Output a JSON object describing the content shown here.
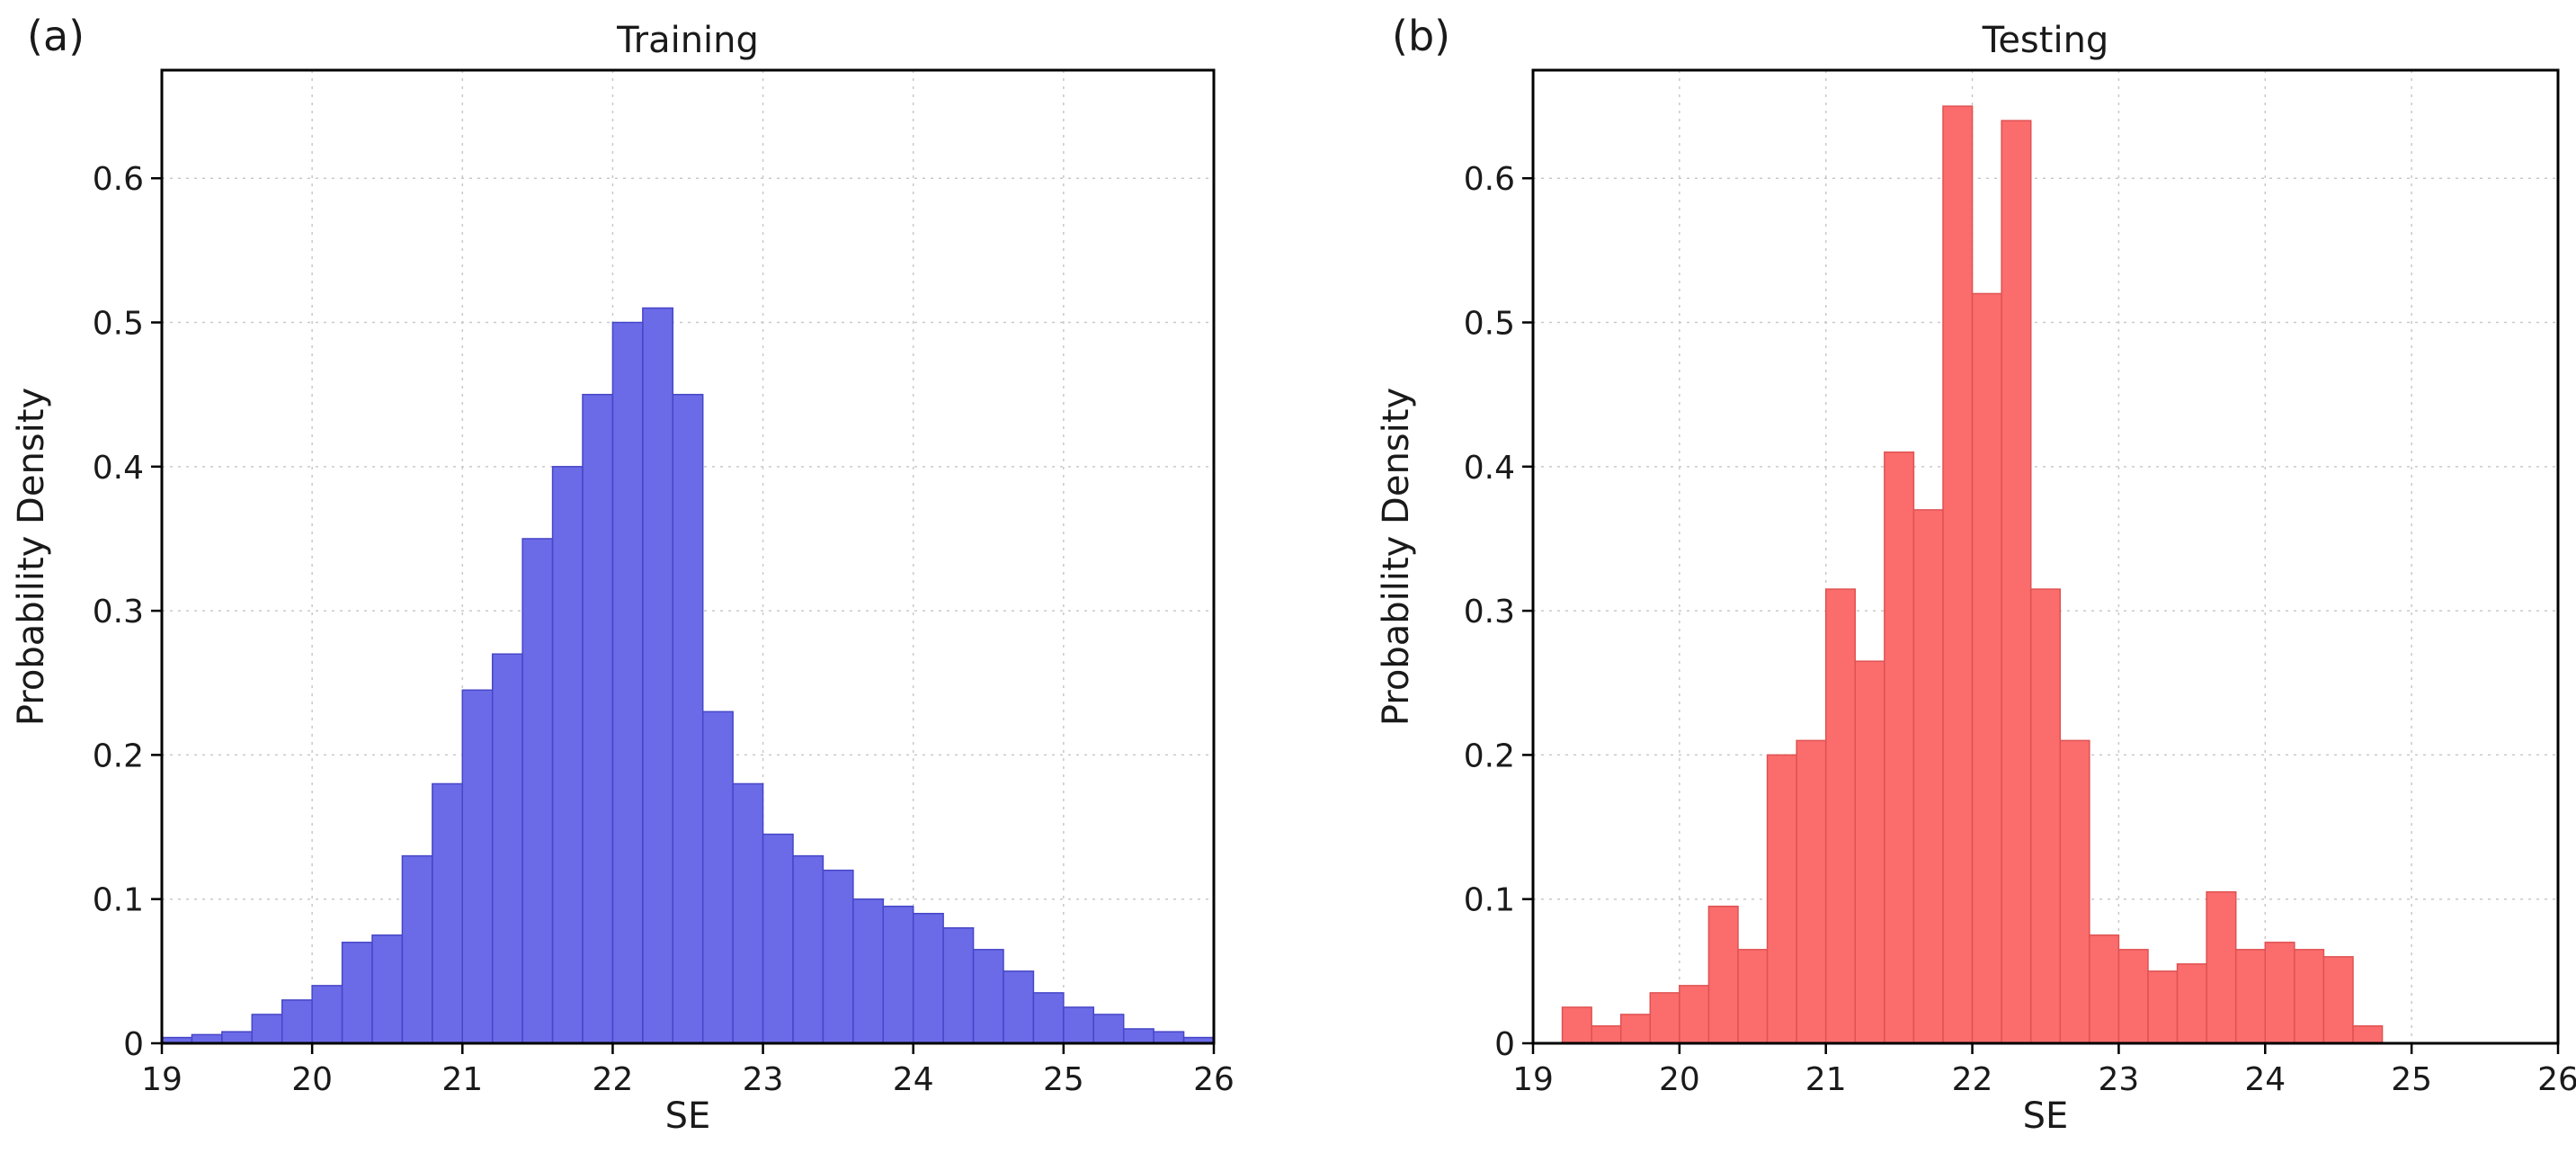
{
  "figure": {
    "background": "#ffffff"
  },
  "chart_data": [
    {
      "type": "bar",
      "subtype": "histogram",
      "panel_label": "(a)",
      "title": "Training",
      "xlabel": "SE",
      "ylabel": "Probability Density",
      "xlim": [
        19,
        26
      ],
      "ylim": [
        0,
        0.675
      ],
      "xticks": [
        19,
        20,
        21,
        22,
        23,
        24,
        25,
        26
      ],
      "xtick_labels": [
        "19",
        "20",
        "21",
        "22",
        "23",
        "24",
        "25",
        "26"
      ],
      "yticks": [
        0,
        0.1,
        0.2,
        0.3,
        0.4,
        0.5,
        0.6
      ],
      "ytick_labels": [
        "0",
        "0.1",
        "0.2",
        "0.3",
        "0.4",
        "0.5",
        "0.6"
      ],
      "grid": true,
      "legend": false,
      "bar_color": "#6b6be8",
      "bar_edge_color": "#4646c8",
      "bin_start": 19.0,
      "bin_width": 0.2,
      "values": [
        0.004,
        0.006,
        0.008,
        0.02,
        0.03,
        0.04,
        0.07,
        0.075,
        0.13,
        0.18,
        0.245,
        0.27,
        0.35,
        0.4,
        0.45,
        0.5,
        0.51,
        0.45,
        0.23,
        0.18,
        0.145,
        0.13,
        0.12,
        0.1,
        0.095,
        0.09,
        0.08,
        0.065,
        0.05,
        0.035,
        0.025,
        0.02,
        0.01,
        0.008,
        0.004
      ]
    },
    {
      "type": "bar",
      "subtype": "histogram",
      "panel_label": "(b)",
      "title": "Testing",
      "xlabel": "SE",
      "ylabel": "Probability Density",
      "xlim": [
        19,
        26
      ],
      "ylim": [
        0,
        0.675
      ],
      "xticks": [
        19,
        20,
        21,
        22,
        23,
        24,
        25,
        26
      ],
      "xtick_labels": [
        "19",
        "20",
        "21",
        "22",
        "23",
        "24",
        "25",
        "26"
      ],
      "yticks": [
        0,
        0.1,
        0.2,
        0.3,
        0.4,
        0.5,
        0.6
      ],
      "ytick_labels": [
        "0",
        "0.1",
        "0.2",
        "0.3",
        "0.4",
        "0.5",
        "0.6"
      ],
      "grid": true,
      "legend": false,
      "bar_color": "#fb6d6d",
      "bar_edge_color": "#e05252",
      "bin_start": 19.0,
      "bin_width": 0.2,
      "values": [
        0,
        0.025,
        0.012,
        0.02,
        0.035,
        0.04,
        0.095,
        0.065,
        0.2,
        0.21,
        0.315,
        0.265,
        0.41,
        0.37,
        0.65,
        0.52,
        0.64,
        0.315,
        0.21,
        0.075,
        0.065,
        0.05,
        0.055,
        0.105,
        0.065,
        0.07,
        0.065,
        0.06,
        0.012,
        0,
        0,
        0,
        0,
        0,
        0
      ]
    }
  ]
}
